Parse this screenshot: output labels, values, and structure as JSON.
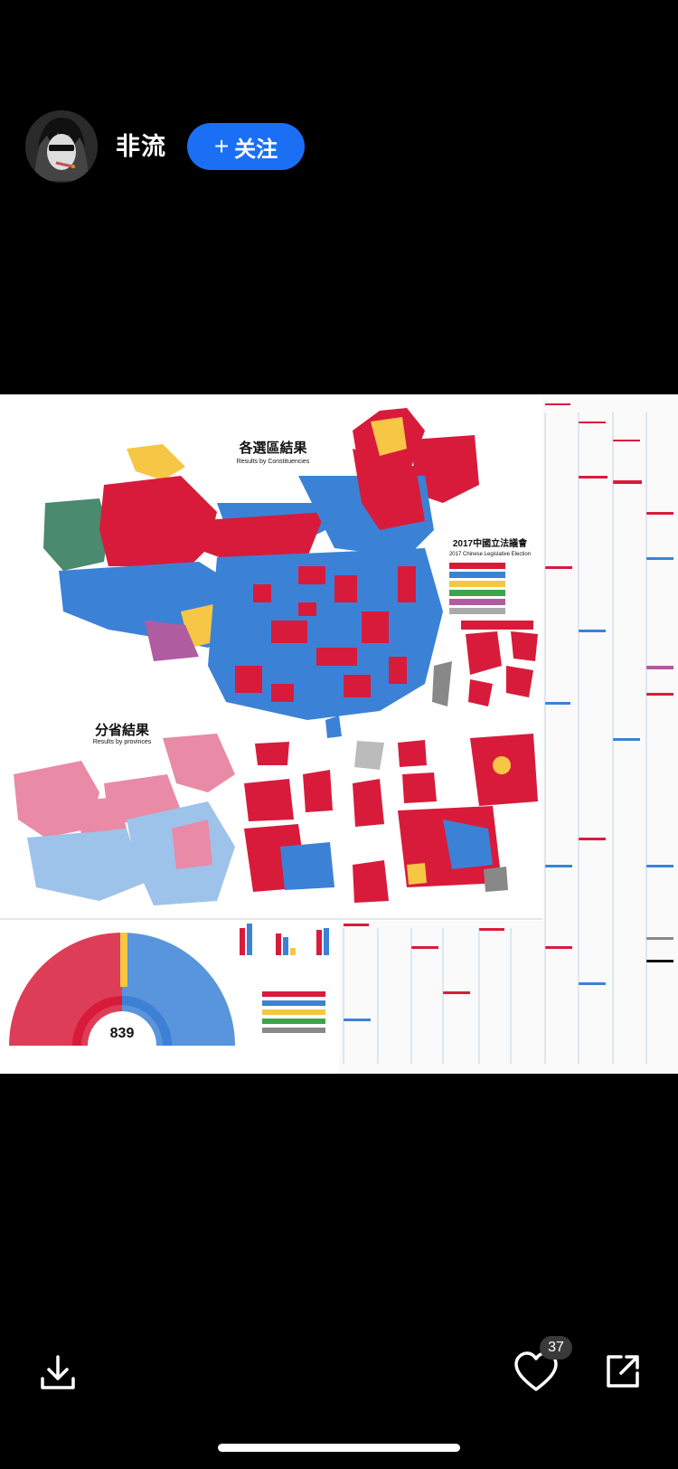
{
  "author": {
    "name": "非流",
    "follow_label": "关注",
    "follow_plus": "+"
  },
  "image": {
    "title_constituencies": "各選區結果",
    "subtitle_constituencies": "Results by Constituencies",
    "title_provinces": "分省結果",
    "subtitle_provinces": "Results by provinces",
    "legend_title": "2017中國立法議會",
    "legend_subtitle": "2017 Chinese Legislative Election",
    "seat_total": "839",
    "party_colors": {
      "red": "#d81b3b",
      "blue": "#3b82d6",
      "yellow": "#f6c644",
      "teal": "#4a8a6e",
      "pink": "#e98aa6",
      "lightblue": "#9ec3ea",
      "purple": "#b05ca0",
      "green": "#3fa34d"
    }
  },
  "actions": {
    "download_icon": "download-icon",
    "like_icon": "heart-icon",
    "like_count": "37",
    "share_icon": "share-icon"
  }
}
